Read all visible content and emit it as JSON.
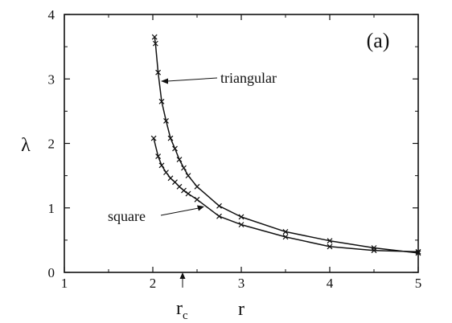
{
  "chart_data": {
    "type": "line",
    "panel_label": "(a)",
    "xlabel": "r",
    "ylabel": "λ",
    "xlim": [
      1,
      5
    ],
    "ylim": [
      0,
      4
    ],
    "xticks": [
      1,
      2,
      3,
      4,
      5
    ],
    "yticks": [
      0,
      1,
      2,
      3,
      4
    ],
    "xtick_labels": [
      "1",
      "2",
      "3",
      "4",
      "5"
    ],
    "ytick_labels": [
      "0",
      "1",
      "2",
      "3",
      "4"
    ],
    "grid": false,
    "marker_annotation": {
      "label": "r",
      "subscript": "c",
      "x": 2.33
    },
    "series": [
      {
        "name": "triangular",
        "x": [
          2.02,
          2.03,
          2.06,
          2.1,
          2.15,
          2.2,
          2.25,
          2.3,
          2.35,
          2.4,
          2.5,
          2.75,
          3.0,
          3.5,
          4.0,
          4.5,
          5.0
        ],
        "y": [
          3.65,
          3.55,
          3.1,
          2.65,
          2.35,
          2.08,
          1.92,
          1.75,
          1.62,
          1.5,
          1.33,
          1.03,
          0.86,
          0.63,
          0.49,
          0.38,
          0.3
        ]
      },
      {
        "name": "square",
        "x": [
          2.01,
          2.06,
          2.1,
          2.15,
          2.2,
          2.25,
          2.3,
          2.35,
          2.4,
          2.5,
          2.75,
          3.0,
          3.5,
          4.0,
          4.5,
          5.0
        ],
        "y": [
          2.08,
          1.8,
          1.66,
          1.55,
          1.46,
          1.4,
          1.33,
          1.27,
          1.22,
          1.13,
          0.87,
          0.74,
          0.55,
          0.4,
          0.34,
          0.32
        ]
      }
    ]
  }
}
